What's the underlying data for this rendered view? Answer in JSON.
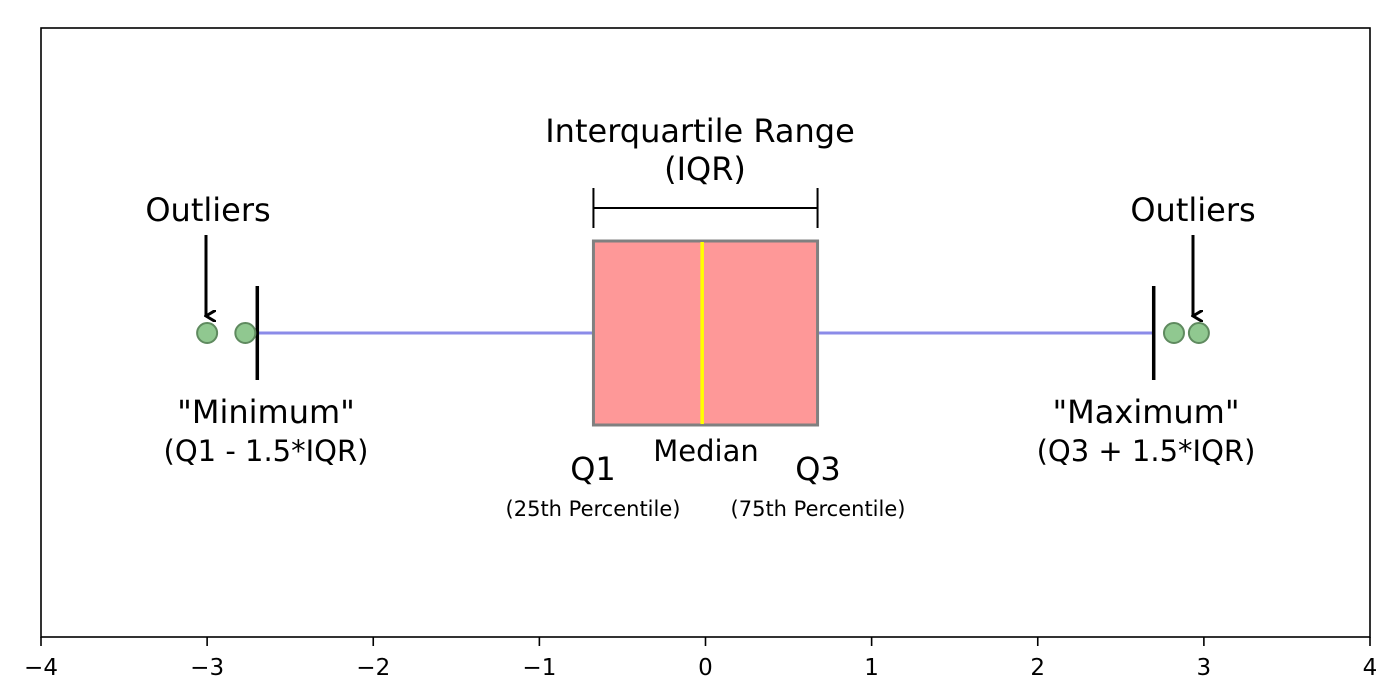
{
  "chart_data": {
    "type": "box",
    "xlim": [
      -4,
      4
    ],
    "x_ticks": [
      -4,
      -3,
      -2,
      -1,
      0,
      1,
      2,
      3,
      4
    ],
    "x_tick_labels": [
      "−4",
      "−3",
      "−2",
      "−1",
      "0",
      "1",
      "2",
      "3",
      "4"
    ],
    "box": {
      "q1": -0.6745,
      "median": -0.02,
      "q3": 0.6745,
      "whisker_low": -2.698,
      "whisker_high": 2.698
    },
    "outliers": [
      -3.0,
      -2.77,
      2.82,
      2.97
    ],
    "colors": {
      "box_fill": "#fe9898",
      "box_edge": "#808080",
      "median": "#ffff00",
      "whisker": "#8b8be8",
      "cap": "#000000",
      "outlier_fill": "#90c890",
      "outlier_edge": "#5f8a5f"
    }
  },
  "annotations": {
    "iqr_title": "Interquartile Range",
    "iqr_sub": "(IQR)",
    "outliers_left": "Outliers",
    "outliers_right": "Outliers",
    "minimum_label": "\"Minimum\"",
    "minimum_formula": "(Q1 - 1.5*IQR)",
    "maximum_label": "\"Maximum\"",
    "maximum_formula": "(Q3 + 1.5*IQR)",
    "q1_label": "Q1",
    "q1_sub": "(25th Percentile)",
    "median_label": "Median",
    "q3_label": "Q3",
    "q3_sub": "(75th Percentile)"
  }
}
